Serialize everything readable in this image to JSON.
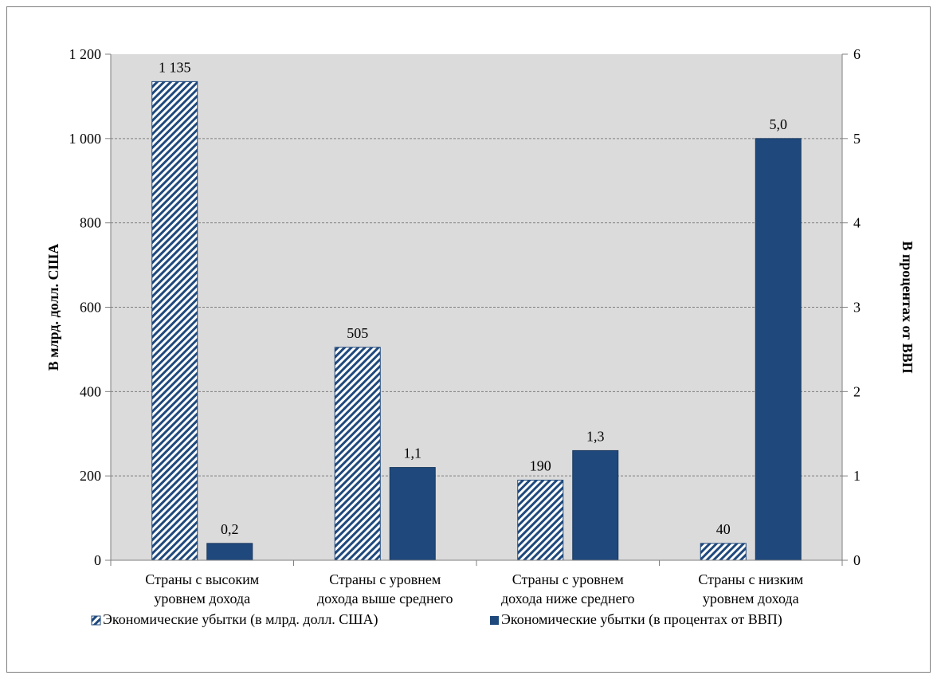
{
  "chart_data": {
    "type": "bar",
    "categories": [
      [
        "Страны с высоким",
        "уровнем дохода"
      ],
      [
        "Страны с уровнем",
        "дохода выше среднего"
      ],
      [
        "Страны с уровнем",
        "дохода ниже среднего"
      ],
      [
        "Страны с низким",
        "уровнем дохода"
      ]
    ],
    "series": [
      {
        "name": "Экономические убытки (в млрд. долл. США)",
        "axis": "left",
        "values": [
          1135,
          505,
          190,
          40
        ],
        "labels": [
          "1 135",
          "505",
          "190",
          "40"
        ],
        "pattern": "diagonal-hatch",
        "color": "#1f497d"
      },
      {
        "name": "Экономические убытки (в процентах от ВВП)",
        "axis": "right",
        "values": [
          0.2,
          1.1,
          1.3,
          5.0
        ],
        "labels": [
          "0,2",
          "1,1",
          "1,3",
          "5,0"
        ],
        "pattern": "solid",
        "color": "#1f497d"
      }
    ],
    "ylabel_left": "В млрд. долл. США",
    "ylabel_right": "В процентах от ВВП",
    "ylim_left": [
      0,
      1200
    ],
    "ylim_right": [
      0,
      6
    ],
    "yticks_left": [
      "0",
      "200",
      "400",
      "600",
      "800",
      "1 000",
      "1 200"
    ],
    "yticks_right": [
      "0",
      "1",
      "2",
      "3",
      "4",
      "5",
      "6"
    ],
    "grid": true,
    "plot_background": "#dbdbdb",
    "legend_position": "bottom"
  }
}
